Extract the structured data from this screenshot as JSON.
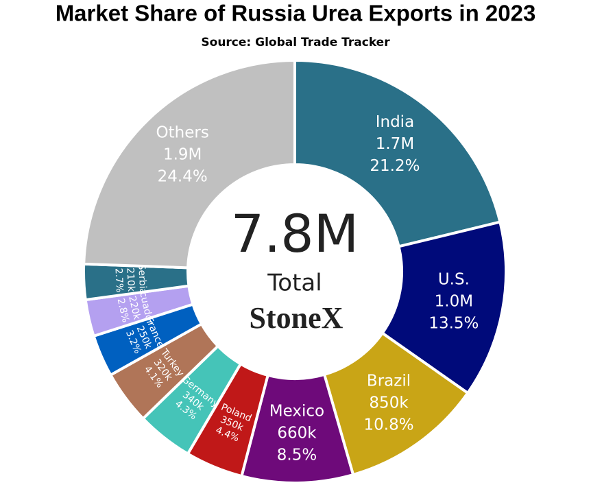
{
  "chart_data": {
    "type": "donut",
    "title": "Market Share of Russia Urea Exports in 2023",
    "subtitle": "Source: Global Trade Tracker",
    "categories": [
      "India",
      "U.S.",
      "Brazil",
      "Mexico",
      "Poland",
      "Germany",
      "Turkey",
      "France",
      "Ecuador",
      "Serbia",
      "Others"
    ],
    "values": [
      1700000,
      1000000,
      850000,
      660000,
      350000,
      340000,
      320000,
      250000,
      220000,
      210000,
      1900000
    ],
    "value_labels": [
      "1.7M",
      "1.0M",
      "850k",
      "660k",
      "350k",
      "340k",
      "320k",
      "250k",
      "220k",
      "210k",
      "1.9M"
    ],
    "shares": [
      21.2,
      13.5,
      10.8,
      8.5,
      4.4,
      4.3,
      4.1,
      3.2,
      2.8,
      2.7,
      24.4
    ],
    "share_labels": [
      "21.2%",
      "13.5%",
      "10.8%",
      "8.5%",
      "4.4%",
      "4.3%",
      "4.1%",
      "3.2%",
      "2.8%",
      "2.7%",
      "24.4%"
    ],
    "colors": [
      "#2a7088",
      "#000a7a",
      "#c9a516",
      "#6e0a7a",
      "#c01818",
      "#45c4b8",
      "#b07558",
      "#0060c0",
      "#b4a0f0",
      "#2a7088",
      "#c0c0c0"
    ],
    "total": {
      "value": 7800000,
      "label": "7.8M"
    },
    "total_caption": "Total",
    "logo": "StoneX"
  }
}
